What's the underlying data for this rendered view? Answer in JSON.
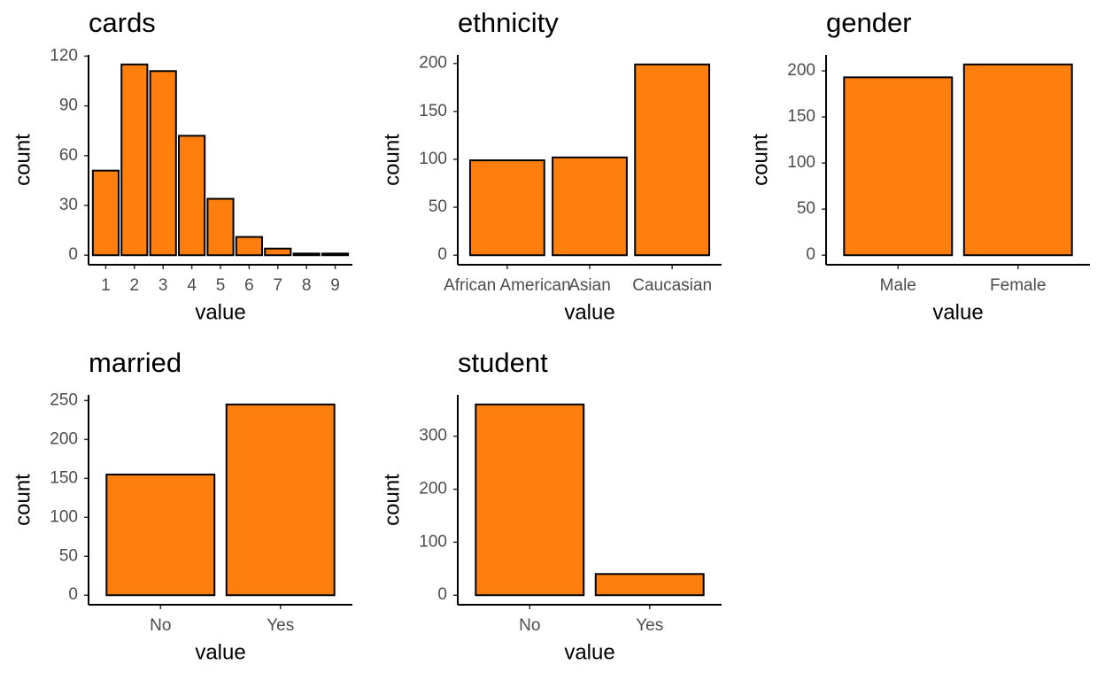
{
  "chart_data": [
    {
      "type": "bar",
      "title": "cards",
      "x_label": "value",
      "y_label": "count",
      "color": "#ff7f0e",
      "categories": [
        "1",
        "2",
        "3",
        "4",
        "5",
        "6",
        "7",
        "8",
        "9"
      ],
      "values": [
        51,
        115,
        111,
        72,
        34,
        11,
        4,
        1,
        1
      ],
      "ylim": [
        -5.75,
        120.75
      ],
      "yticks": [
        0,
        30,
        60,
        90,
        120
      ]
    },
    {
      "type": "bar",
      "title": "ethnicity",
      "x_label": "value",
      "y_label": "count",
      "color": "#ff7f0e",
      "categories": [
        "African American",
        "Asian",
        "Caucasian"
      ],
      "values": [
        99,
        102,
        199
      ],
      "ylim": [
        -9.95,
        208.95
      ],
      "yticks": [
        0,
        50,
        100,
        150,
        200
      ]
    },
    {
      "type": "bar",
      "title": "gender",
      "x_label": "value",
      "y_label": "count",
      "color": "#ff7f0e",
      "categories": [
        "Male",
        "Female"
      ],
      "values": [
        193,
        207
      ],
      "ylim": [
        -10.35,
        217.35
      ],
      "yticks": [
        0,
        50,
        100,
        150,
        200
      ]
    },
    {
      "type": "bar",
      "title": "married",
      "x_label": "value",
      "y_label": "count",
      "color": "#ff7f0e",
      "categories": [
        "No",
        "Yes"
      ],
      "values": [
        155,
        245
      ],
      "ylim": [
        -12.25,
        257.25
      ],
      "yticks": [
        0,
        50,
        100,
        150,
        200,
        250
      ]
    },
    {
      "type": "bar",
      "title": "student",
      "x_label": "value",
      "y_label": "count",
      "color": "#ff7f0e",
      "categories": [
        "No",
        "Yes"
      ],
      "values": [
        360,
        40
      ],
      "ylim": [
        -18,
        378
      ],
      "yticks": [
        0,
        100,
        200,
        300
      ]
    }
  ]
}
